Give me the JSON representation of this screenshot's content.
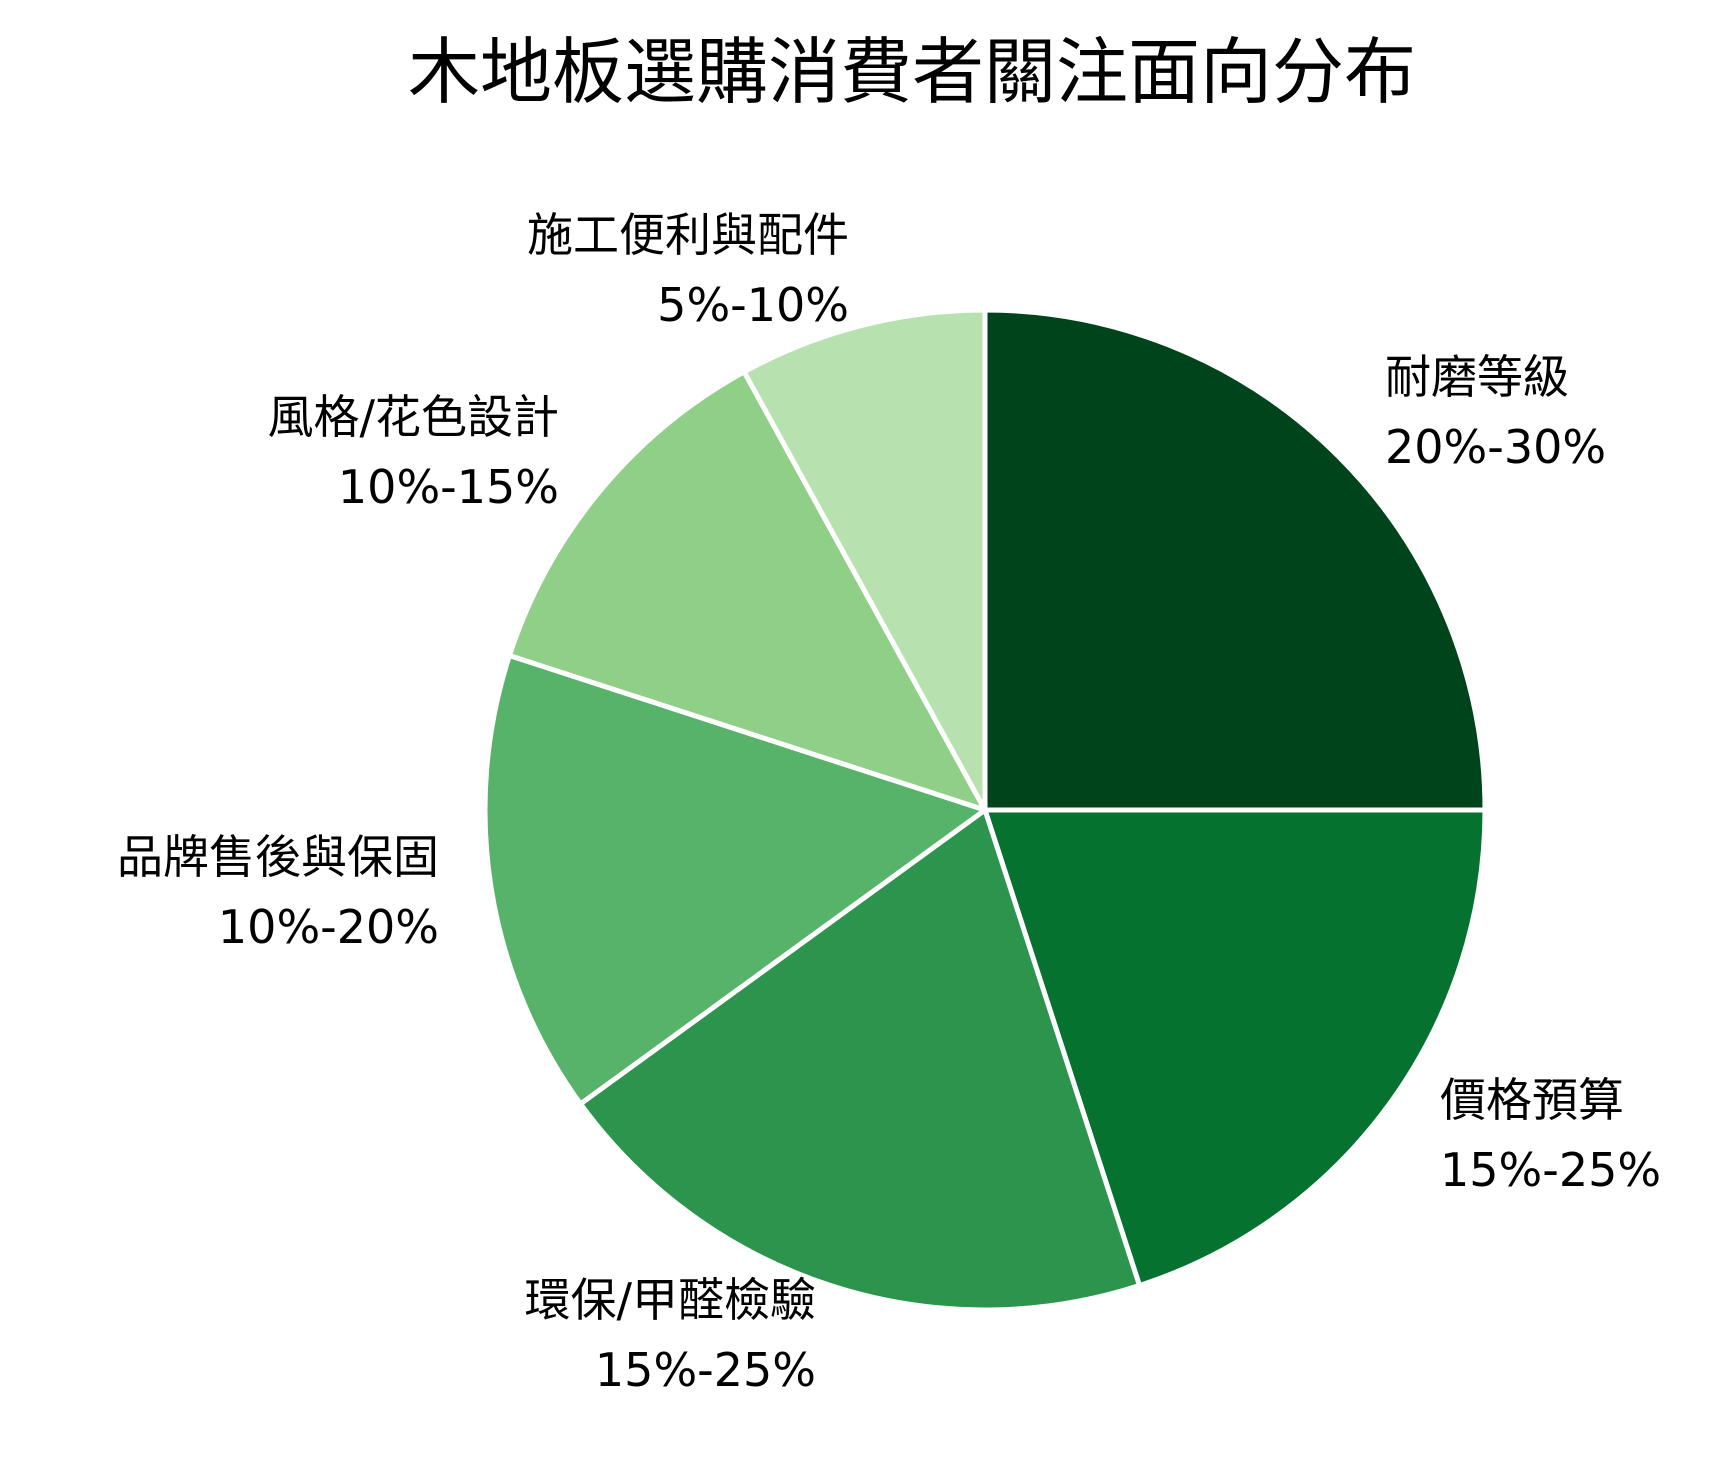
{
  "chart_data": {
    "type": "pie",
    "title": "木地板選購消費者關注面向分布",
    "start_angle_deg": 0,
    "direction": "clockwise",
    "slices": [
      {
        "label": "耐磨等級",
        "range": "20%-30%",
        "value": 25,
        "color": "#00441b"
      },
      {
        "label": "價格預算",
        "range": "15%-25%",
        "value": 20,
        "color": "#067230"
      },
      {
        "label": "環保/甲醛檢驗",
        "range": "15%-25%",
        "value": 20,
        "color": "#2d944e"
      },
      {
        "label": "品牌售後與保固",
        "range": "10%-20%",
        "value": 15,
        "color": "#56b369"
      },
      {
        "label": "風格/花色設計",
        "range": "10%-15%",
        "value": 12,
        "color": "#8fcf88"
      },
      {
        "label": "施工便利與配件",
        "range": "5%-10%",
        "value": 8,
        "color": "#b7e2b0"
      }
    ],
    "legend": "none",
    "labels_outside": true
  },
  "title": "木地板選購消費者關注面向分布"
}
